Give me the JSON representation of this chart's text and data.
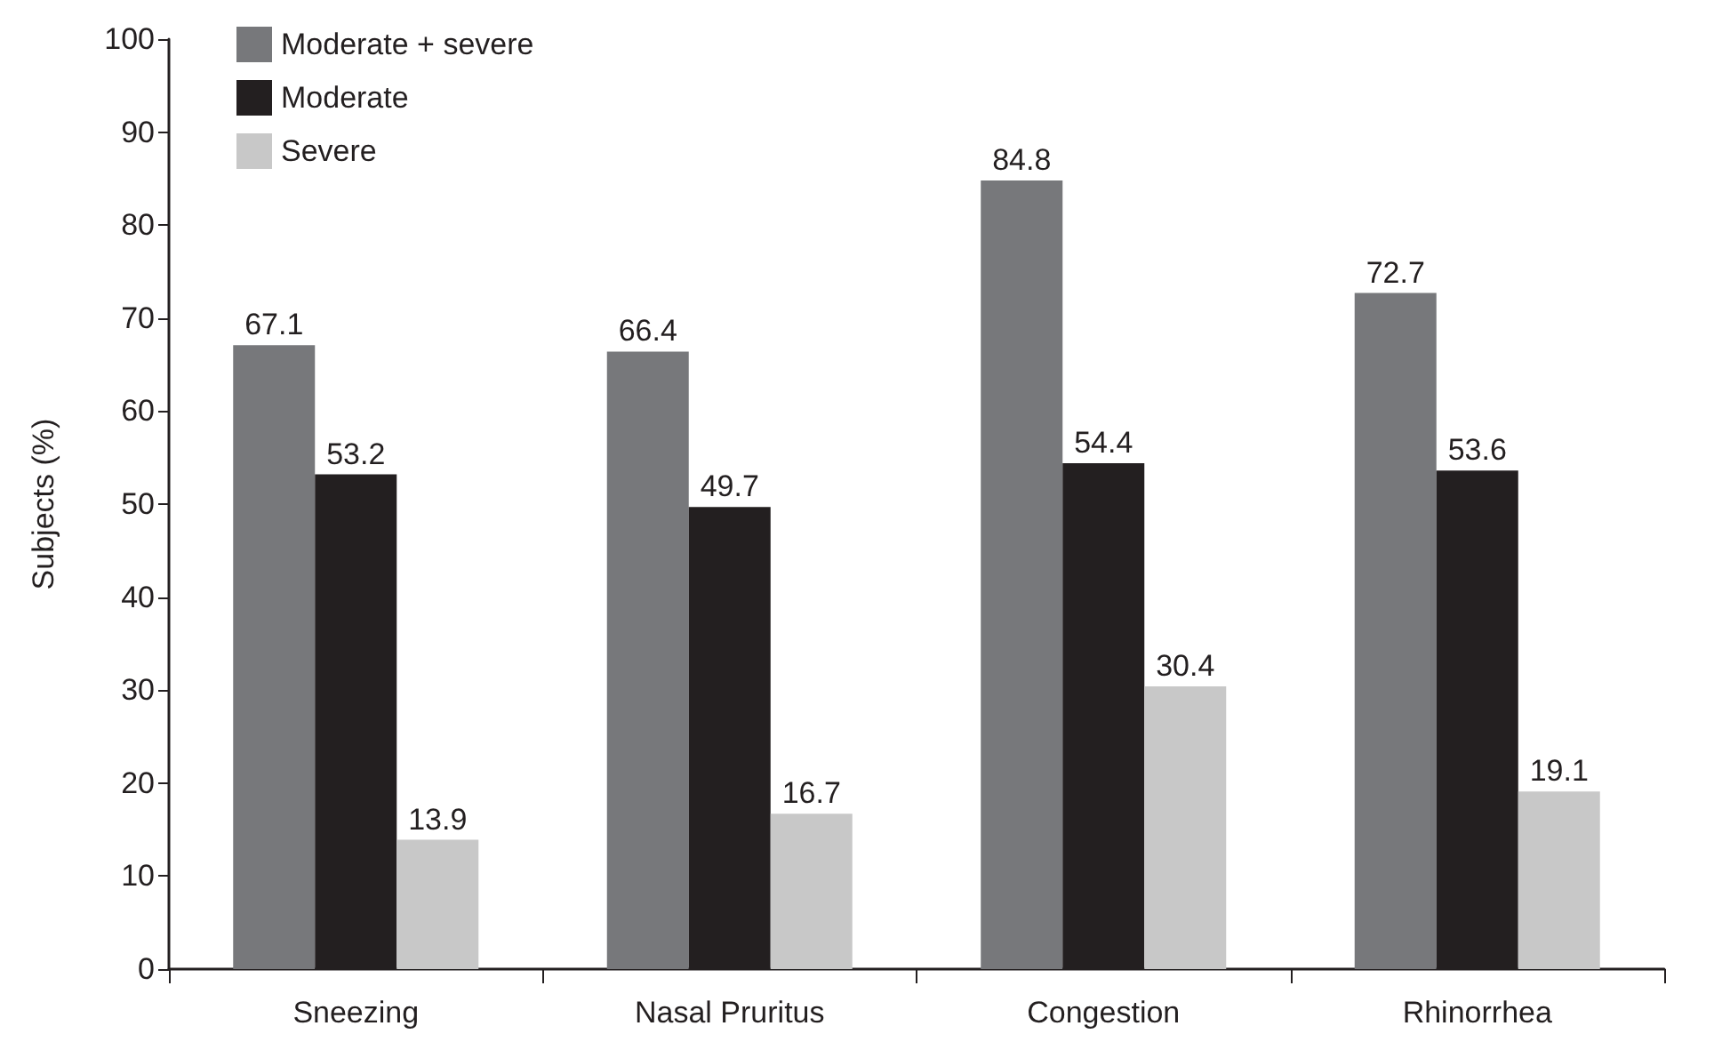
{
  "chart_data": {
    "type": "bar",
    "ylabel": "Subjects (%)",
    "categories": [
      "Sneezing",
      "Nasal Pruritus",
      "Congestion",
      "Rhinorrhea"
    ],
    "series": [
      {
        "name": "Moderate + severe",
        "color": "#77787b",
        "values": [
          67.1,
          66.4,
          84.8,
          72.7
        ]
      },
      {
        "name": "Moderate",
        "color": "#231f20",
        "values": [
          53.2,
          49.7,
          54.4,
          53.6
        ]
      },
      {
        "name": "Severe",
        "color": "#c8c8c8",
        "values": [
          13.9,
          16.7,
          30.4,
          19.1
        ]
      }
    ],
    "ylim": [
      0,
      100
    ],
    "yticks": [
      0,
      10,
      20,
      30,
      40,
      50,
      60,
      70,
      80,
      90,
      100
    ],
    "data_labels": true,
    "grid": false,
    "legend": "top left"
  }
}
